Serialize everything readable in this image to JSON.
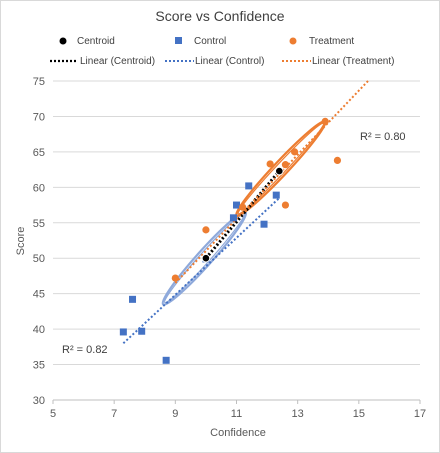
{
  "chart_data": {
    "type": "scatter",
    "title": "Score vs Confidence",
    "xlabel": "Confidence",
    "ylabel": "Score",
    "xlim": [
      5,
      17
    ],
    "ylim": [
      30,
      75
    ],
    "x_ticks": [
      "5",
      "7",
      "9",
      "11",
      "13",
      "15",
      "17"
    ],
    "y_ticks": [
      "30",
      "35",
      "40",
      "45",
      "50",
      "55",
      "60",
      "65",
      "70",
      "75"
    ],
    "grid": "horizontal",
    "legend_position": "top",
    "legend": {
      "centroid": "Centroid",
      "control": "Control",
      "treatment": "Treatment",
      "linear_centroid": "Linear (Centroid)",
      "linear_control": "Linear (Control)",
      "linear_treatment": "Linear (Treatment)"
    },
    "annotations": {
      "r2_control": "R² = 0.82",
      "r2_treatment": "R² = 0.80"
    },
    "colors": {
      "control": "#4472C4",
      "treatment": "#ED7D31",
      "centroid": "#000000",
      "control_ellipse": "#8EA9DB",
      "treatment_ellipse": "#ED7D31"
    },
    "series": [
      {
        "name": "Control",
        "points": [
          [
            7.3,
            39.6
          ],
          [
            7.6,
            44.2
          ],
          [
            7.9,
            39.7
          ],
          [
            8.7,
            35.6
          ],
          [
            10.0,
            49.9
          ],
          [
            10.9,
            55.7
          ],
          [
            11.0,
            57.5
          ],
          [
            11.4,
            60.2
          ],
          [
            11.9,
            54.8
          ],
          [
            12.3,
            58.9
          ]
        ]
      },
      {
        "name": "Treatment",
        "points": [
          [
            9.0,
            47.2
          ],
          [
            10.0,
            54.0
          ],
          [
            11.2,
            57.2
          ],
          [
            12.1,
            63.3
          ],
          [
            12.6,
            57.5
          ],
          [
            12.6,
            63.2
          ],
          [
            12.9,
            65.0
          ],
          [
            13.9,
            69.3
          ],
          [
            14.3,
            63.8
          ]
        ]
      },
      {
        "name": "Centroid",
        "points": [
          [
            10.0,
            50.0
          ],
          [
            12.4,
            62.3
          ]
        ]
      }
    ],
    "trendlines": [
      {
        "name": "Linear (Centroid)",
        "from": [
          10.0,
          50.0
        ],
        "to": [
          12.4,
          62.3
        ]
      },
      {
        "name": "Linear (Control)",
        "from": [
          7.3,
          38.0
        ],
        "to": [
          12.4,
          58.5
        ]
      },
      {
        "name": "Linear (Treatment)",
        "from": [
          9.0,
          46.5
        ],
        "to": [
          15.3,
          75.0
        ]
      }
    ],
    "ellipses": [
      {
        "name": "control",
        "from": [
          8.6,
          43.5
        ],
        "to": [
          11.3,
          56.5
        ],
        "half_width": 0.45
      },
      {
        "name": "treatment",
        "from": [
          11.0,
          56.0
        ],
        "to": [
          13.9,
          69.3
        ],
        "half_width": 0.42
      }
    ]
  }
}
